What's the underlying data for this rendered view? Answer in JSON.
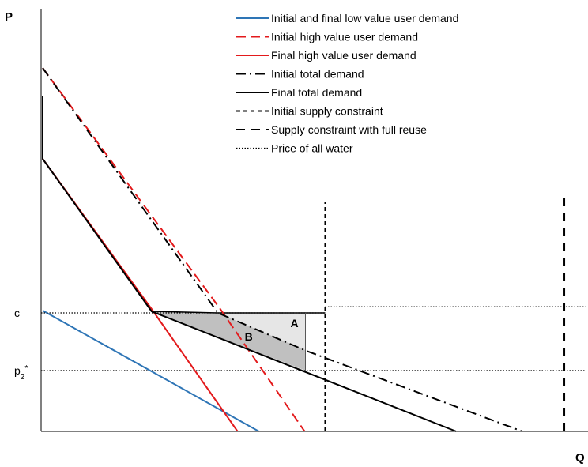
{
  "chart_data": {
    "type": "line",
    "title": "",
    "xlabel": "Q",
    "ylabel": "P",
    "xlim": [
      0,
      690
    ],
    "ylim": [
      0,
      520
    ],
    "x_ticks": [],
    "y_ticks": [
      {
        "label": "c",
        "value": 150
      },
      {
        "label": "p2*",
        "value": 77
      }
    ],
    "legend_position": "top-right",
    "grid": false,
    "series": [
      {
        "name": "Initial and final low value user demand",
        "color": "#2E75B6",
        "dash": "solid",
        "points": [
          [
            2,
            153
          ],
          [
            276,
            0
          ]
        ]
      },
      {
        "name": "Initial high value user demand",
        "color": "#E31A1C",
        "dash": "dashed",
        "points": [
          [
            2,
            460
          ],
          [
            227,
            155
          ],
          [
            334,
            0
          ]
        ]
      },
      {
        "name": "Final high value user demand",
        "color": "#E31A1C",
        "dash": "solid",
        "points": [
          [
            2,
            345
          ],
          [
            140,
            155
          ],
          [
            249,
            0
          ]
        ]
      },
      {
        "name": "Initial total demand",
        "color": "#000000",
        "dash": "dashdot",
        "points": [
          [
            2,
            460
          ],
          [
            224,
            150
          ],
          [
            336,
            102
          ],
          [
            610,
            0
          ]
        ]
      },
      {
        "name": "Final total demand",
        "color": "#000000",
        "dash": "solid",
        "points": [
          [
            2,
            425
          ],
          [
            2,
            345
          ],
          [
            140,
            152
          ],
          [
            526,
            0
          ]
        ]
      },
      {
        "name": "Initial supply constraint",
        "color": "#000000",
        "dash": "shortdash",
        "points": [
          [
            360,
            0
          ],
          [
            360,
            290
          ]
        ]
      },
      {
        "name": "Supply constraint with full reuse",
        "color": "#000000",
        "dash": "longdash",
        "points": [
          [
            663,
            0
          ],
          [
            663,
            295
          ]
        ]
      },
      {
        "name": "Price of all water",
        "color": "#000000",
        "dash": "dotted",
        "points": [
          [
            0,
            150
          ],
          [
            360,
            150
          ]
        ]
      }
    ],
    "reference_lines": [
      {
        "color": "#000000",
        "dash": "dotted",
        "points": [
          [
            0,
            77
          ],
          [
            690,
            77
          ]
        ]
      },
      {
        "color": "#555555",
        "dash": "dotted",
        "points": [
          [
            360,
            158
          ],
          [
            690,
            158
          ]
        ]
      }
    ],
    "regions": [
      {
        "label": "A",
        "fill": "#e6e6e6",
        "polygon": [
          [
            224,
            150
          ],
          [
            335,
            150
          ],
          [
            335,
            103
          ]
        ],
        "label_at": [
          316,
          132
        ]
      },
      {
        "label": "B",
        "fill": "#c0c0c0",
        "polygon": [
          [
            140,
            152
          ],
          [
            224,
            150
          ],
          [
            335,
            103
          ],
          [
            335,
            77
          ]
        ],
        "label_at": [
          258,
          115
        ]
      }
    ],
    "area_outline": {
      "color": "#000000",
      "points": [
        [
          140,
          152
        ],
        [
          224,
          150
        ],
        [
          360,
          150
        ]
      ]
    },
    "area_right_edge": {
      "color": "#555555",
      "points": [
        [
          335,
          150
        ],
        [
          335,
          77
        ]
      ]
    }
  }
}
